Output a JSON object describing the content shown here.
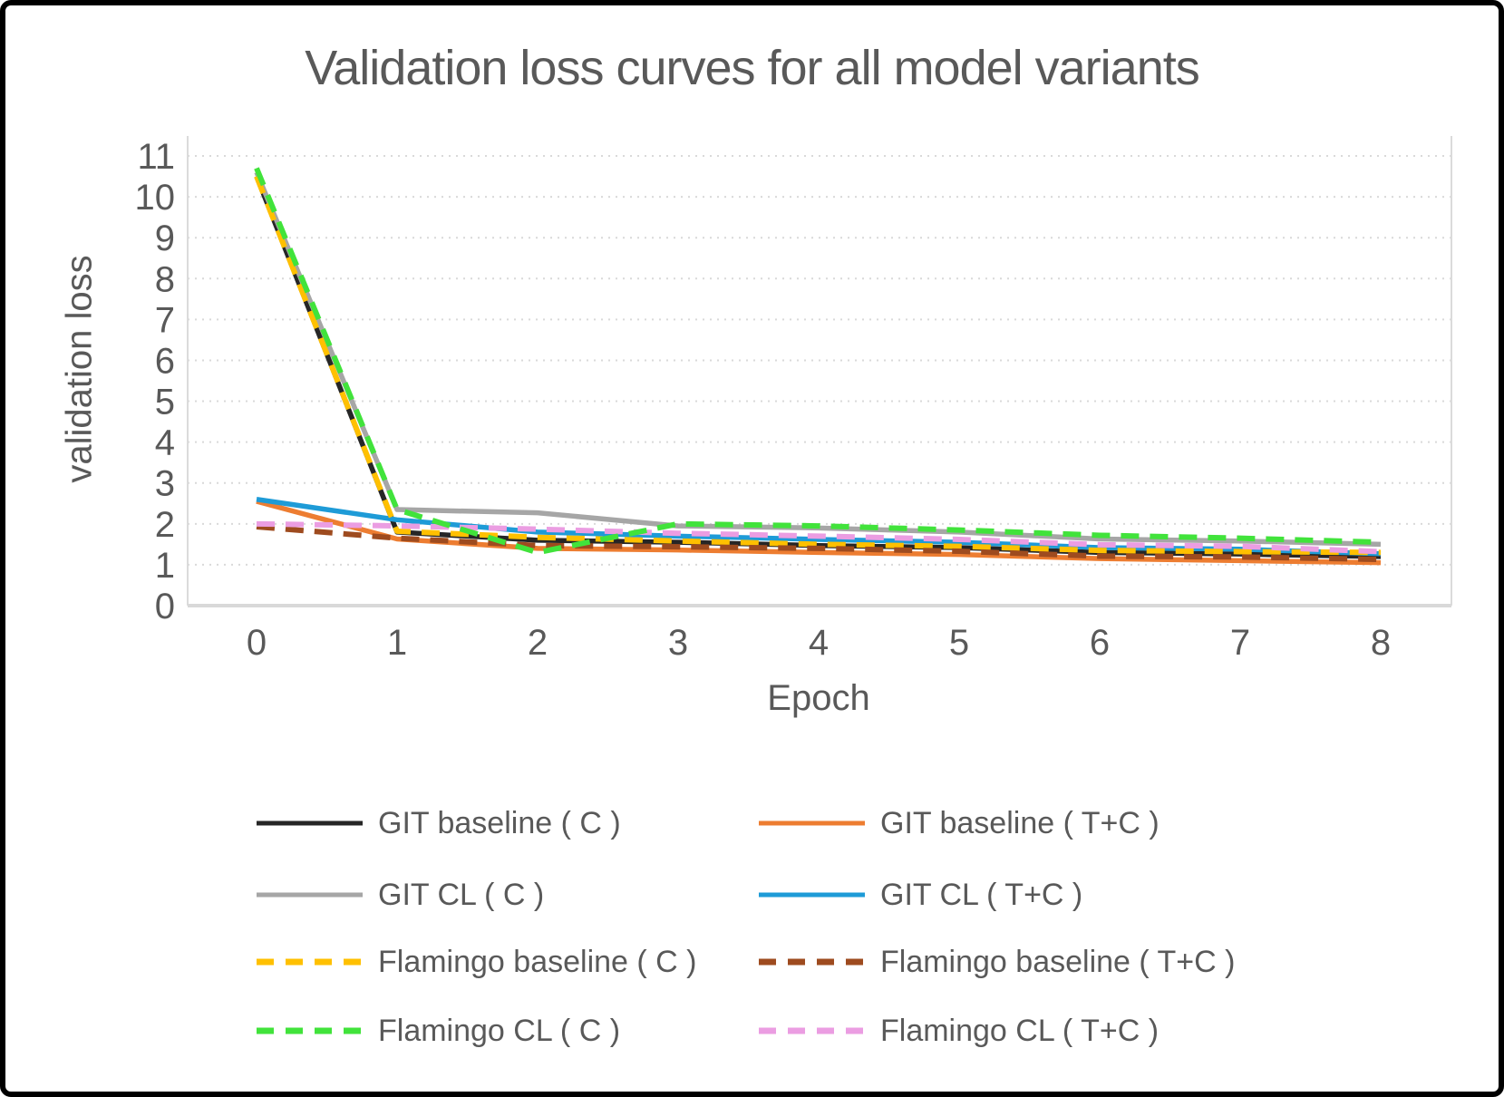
{
  "title": "Validation loss curves for all model variants",
  "axes": {
    "y_title": "validation loss",
    "x_title": "Epoch",
    "y_ticks": [
      0,
      1,
      2,
      3,
      4,
      5,
      6,
      7,
      8,
      9,
      10,
      11
    ],
    "x_ticks": [
      0,
      1,
      2,
      3,
      4,
      5,
      6,
      7,
      8
    ]
  },
  "palette": {
    "text": "#595959",
    "gridline": "#D9D9D9",
    "axis_line": "#D9D9D9",
    "plot_border": "#DBDBDB",
    "frame_border": "#000000",
    "background": "#FFFFFF"
  },
  "chart_data": {
    "type": "line",
    "title": "Validation loss curves for all model variants",
    "xlabel": "Epoch",
    "ylabel": "validation loss",
    "x": [
      0,
      1,
      2,
      3,
      4,
      5,
      6,
      7,
      8
    ],
    "xlim": [
      0,
      8
    ],
    "ylim": [
      0,
      11
    ],
    "grid": "horizontal dotted",
    "legend_position": "bottom, 2 columns",
    "series": [
      {
        "name": "GIT baseline ( C )",
        "color": "#262626",
        "style": "solid",
        "values": [
          10.5,
          1.8,
          1.6,
          1.55,
          1.47,
          1.42,
          1.3,
          1.26,
          1.2
        ]
      },
      {
        "name": "GIT baseline ( T+C )",
        "color": "#ED7D31",
        "style": "solid",
        "values": [
          2.55,
          1.63,
          1.4,
          1.36,
          1.3,
          1.25,
          1.15,
          1.1,
          1.05
        ]
      },
      {
        "name": "GIT CL ( C )",
        "color": "#A6A6A6",
        "style": "solid",
        "values": [
          10.6,
          2.35,
          2.27,
          1.95,
          1.9,
          1.8,
          1.63,
          1.58,
          1.5
        ]
      },
      {
        "name": "GIT CL ( T+C )",
        "color": "#1E9BD7",
        "style": "solid",
        "values": [
          2.6,
          2.1,
          1.8,
          1.7,
          1.62,
          1.55,
          1.42,
          1.38,
          1.27
        ]
      },
      {
        "name": "Flamingo baseline ( C )",
        "color": "#FFC000",
        "style": "dashed",
        "values": [
          10.5,
          1.82,
          1.67,
          1.58,
          1.5,
          1.45,
          1.35,
          1.32,
          1.3
        ]
      },
      {
        "name": "Flamingo baseline ( T+C )",
        "color": "#9E4B1F",
        "style": "dashed",
        "values": [
          1.93,
          1.65,
          1.47,
          1.44,
          1.4,
          1.33,
          1.21,
          1.19,
          1.13
        ]
      },
      {
        "name": "Flamingo CL ( C )",
        "color": "#41E33B",
        "style": "dashed",
        "values": [
          10.7,
          2.35,
          1.3,
          2.0,
          1.95,
          1.85,
          1.72,
          1.65,
          1.55
        ]
      },
      {
        "name": "Flamingo CL ( T+C )",
        "color": "#EB9DE2",
        "style": "dashed",
        "values": [
          2.0,
          1.95,
          1.87,
          1.77,
          1.7,
          1.62,
          1.49,
          1.45,
          1.32
        ]
      }
    ]
  }
}
